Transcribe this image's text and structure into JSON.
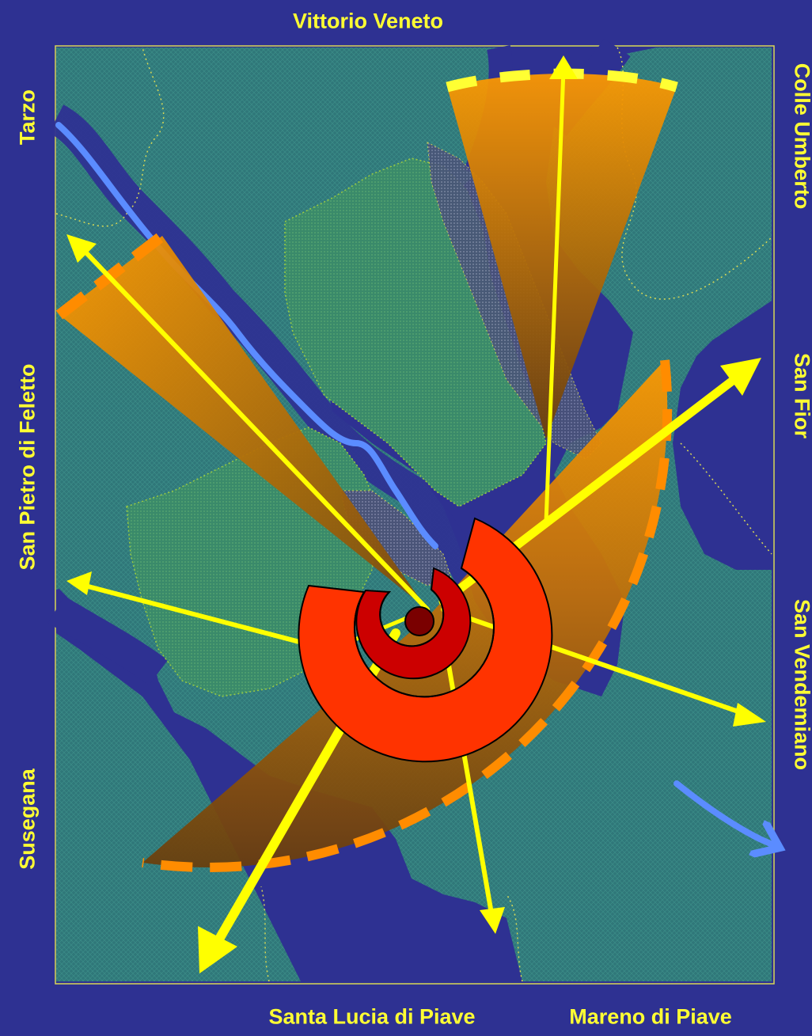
{
  "map": {
    "labels": {
      "top": "Vittorio Veneto",
      "left_top": "Tarzo",
      "left_middle": "San Pietro di Feletto",
      "left_bottom": "Susegana",
      "right_top": "Colle Umberto",
      "right_middle": "San Fior",
      "right_bottom": "San Vendemiano",
      "bottom_left": "Santa Lucia di Piave",
      "bottom_right": "Mareno di Piave"
    },
    "colors": {
      "background": "#2e3192",
      "land": "#2f7a78",
      "urban": "#3c8c70",
      "river": "#5b8cff",
      "label": "#ffff33",
      "arrow": "#ffff00",
      "sector_orange": "#ff9900",
      "sector_brown": "#6b3f0d",
      "ring_outer": "#ff3300",
      "ring_inner": "#cc0000",
      "ring_core": "#7a0000"
    }
  }
}
